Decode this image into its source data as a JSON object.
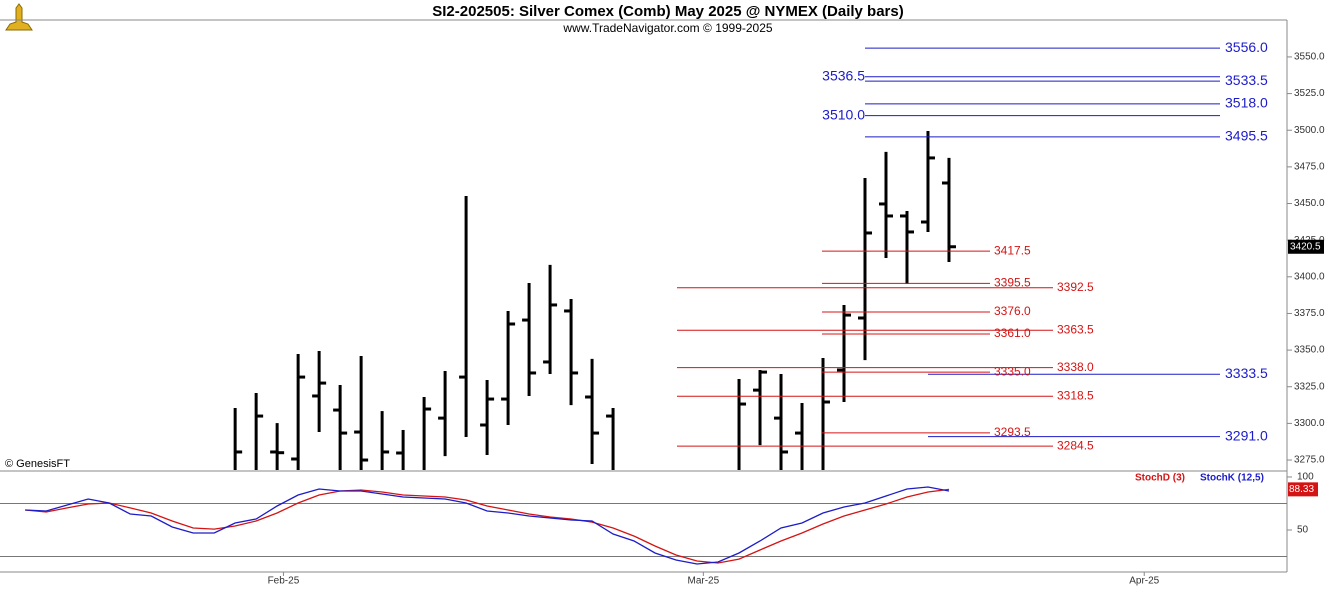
{
  "header": {
    "title": "SI2-202505:  Silver Comex (Comb) May 2025 @ NYMEX  (Daily bars)",
    "subtitle": "www.TradeNavigator.com © 1999-2025"
  },
  "watermark": "© GenesisFT",
  "chart_data": [
    {
      "type": "ohlc",
      "color": "#000000",
      "x": [
        10,
        11,
        12,
        13,
        14,
        15,
        16,
        17,
        18,
        19,
        20,
        21,
        22,
        23,
        24,
        25,
        26,
        27,
        28,
        34,
        35,
        36,
        37,
        38,
        39,
        40,
        41,
        42,
        43,
        44
      ],
      "open": [
        null,
        null,
        3280.5,
        3275.7,
        3318.7,
        3309.1,
        3294.1,
        null,
        3279.8,
        null,
        3303.6,
        3331.6,
        3298.9,
        3316.6,
        3370.5,
        3341.9,
        3376.7,
        3318.0,
        3305.0,
        null,
        3322.7,
        3303.6,
        3293.4,
        null,
        3336.4,
        3371.9,
        3449.7,
        3441.5,
        3437.4,
        3464.0
      ],
      "high": [
        3310.5,
        3320.7,
        3300.2,
        3347.3,
        3349.4,
        3326.2,
        3346.0,
        3308.4,
        3295.5,
        3318.0,
        3335.7,
        3455.1,
        3329.6,
        3376.7,
        3395.8,
        3408.1,
        3384.9,
        3344.0,
        3310.5,
        3330.3,
        3336.4,
        3333.7,
        3313.9,
        3344.6,
        3380.8,
        3467.4,
        3485.2,
        3444.9,
        3499.5,
        3481.1
      ],
      "low": [
        null,
        null,
        null,
        null,
        3294.1,
        null,
        null,
        null,
        null,
        null,
        3277.7,
        3290.7,
        3278.4,
        3298.9,
        3318.7,
        3333.7,
        3312.5,
        3272.3,
        null,
        null,
        3285.2,
        null,
        null,
        null,
        3314.6,
        3343.2,
        3412.8,
        3395.1,
        3430.6,
        3410.1
      ],
      "close": [
        3280.5,
        3305.0,
        3280.0,
        3331.6,
        3327.5,
        3293.4,
        3275.0,
        3280.5,
        null,
        3309.8,
        null,
        null,
        3316.6,
        3367.8,
        3334.4,
        3380.8,
        3334.4,
        3293.4,
        null,
        3313.2,
        3335.0,
        3280.5,
        null,
        3314.6,
        3373.9,
        3429.9,
        3441.5,
        3430.6,
        3481.1,
        3420.5
      ],
      "xlim": [
        -1.2,
        60.1
      ],
      "ylim": [
        3268.2,
        3575.2
      ],
      "yticks": [
        {
          "value": 3275,
          "label": "3275.0"
        },
        {
          "value": 3300,
          "label": "3300.0"
        },
        {
          "value": 3325,
          "label": "3325.0"
        },
        {
          "value": 3350,
          "label": "3350.0"
        },
        {
          "value": 3375,
          "label": "3375.0"
        },
        {
          "value": 3400,
          "label": "3400.0"
        },
        {
          "value": 3425,
          "label": "3425.0"
        },
        {
          "value": 3450,
          "label": "3450.0"
        },
        {
          "value": 3475,
          "label": "3475.0"
        },
        {
          "value": 3500,
          "label": "3500.0"
        },
        {
          "value": 3525,
          "label": "3525.0"
        },
        {
          "value": 3550,
          "label": "3550.0"
        }
      ],
      "levels": [
        {
          "color": "#1c1cc8",
          "values": [
            3556.0,
            3533.5,
            3518.0,
            3495.5
          ],
          "value_labels": [
            "3556.0",
            "3533.5",
            "3518.0",
            "3495.5"
          ]
        },
        {
          "color": "#1c1cc8",
          "values": [
            3536.5,
            3510.0
          ],
          "value_labels": [
            "3536.5",
            "3510.0"
          ]
        },
        {
          "color": "#1c1cc8",
          "values": [
            3333.5,
            3291.0
          ],
          "value_labels": [
            "3333.5",
            "3291.0"
          ]
        },
        {
          "color": "#d41414",
          "values": [
            3417.5,
            3395.5,
            3376.0,
            3361.0,
            3335.0,
            3293.5
          ],
          "value_labels": [
            "3417.5",
            "3395.5",
            "3376.0",
            "3361.0",
            "3335.0",
            "3293.5"
          ]
        },
        {
          "color": "#d41414",
          "values": [
            3392.5,
            3363.5,
            3338.0,
            3318.5,
            3284.5
          ],
          "value_labels": [
            "3392.5",
            "3363.5",
            "3338.0",
            "3318.5",
            "3284.5"
          ]
        }
      ]
    },
    {
      "type": "line",
      "x": [
        0,
        1,
        2,
        3,
        4,
        5,
        6,
        7,
        8,
        9,
        10,
        11,
        12,
        13,
        14,
        15,
        16,
        17,
        18,
        19,
        20,
        21,
        22,
        23,
        24,
        25,
        26,
        27,
        28,
        29,
        30,
        31,
        32,
        33,
        34,
        35,
        36,
        37,
        38,
        39,
        40,
        41,
        42,
        43,
        44
      ],
      "series": [
        {
          "name": "StochD (3)",
          "color": "#d41414",
          "values": [
            68.9,
            67.0,
            70.8,
            74.5,
            75.5,
            70.8,
            66.0,
            58.5,
            51.9,
            50.9,
            53.8,
            58.5,
            66.0,
            75.5,
            83.0,
            86.8,
            87.7,
            85.8,
            83.0,
            82.1,
            81.1,
            78.3,
            72.6,
            68.9,
            65.1,
            62.3,
            60.4,
            57.5,
            51.9,
            44.3,
            34.9,
            26.4,
            20.8,
            18.9,
            22.6,
            31.1,
            39.6,
            47.2,
            55.7,
            63.2,
            68.9,
            74.5,
            81.1,
            85.8,
            88.33
          ]
        },
        {
          "name": "StochK (12,5)",
          "color": "#1c1cc8",
          "values": [
            68.9,
            67.9,
            73.6,
            79.2,
            75.5,
            65.1,
            63.2,
            52.8,
            47.2,
            47.2,
            56.6,
            60.4,
            72.6,
            83.0,
            88.7,
            86.8,
            86.8,
            84.0,
            81.1,
            80.2,
            79.2,
            75.5,
            67.9,
            66.0,
            63.2,
            61.3,
            59.4,
            58.5,
            46.2,
            39.6,
            28.3,
            21.7,
            17.9,
            19.8,
            28.3,
            39.6,
            51.9,
            56.6,
            66.0,
            71.7,
            75.5,
            82.1,
            88.7,
            90.6,
            86.8
          ]
        }
      ],
      "xlim": [
        -1.2,
        60.1
      ],
      "ylim": [
        10.4,
        104.7
      ],
      "yticks": [
        50,
        100
      ],
      "levels": [
        25,
        75
      ],
      "xticks": [
        {
          "value": 12.3,
          "label": "Feb-25"
        },
        {
          "value": 32.3,
          "label": "Mar-25"
        },
        {
          "value": 53.3,
          "label": "Apr-25"
        }
      ]
    }
  ]
}
